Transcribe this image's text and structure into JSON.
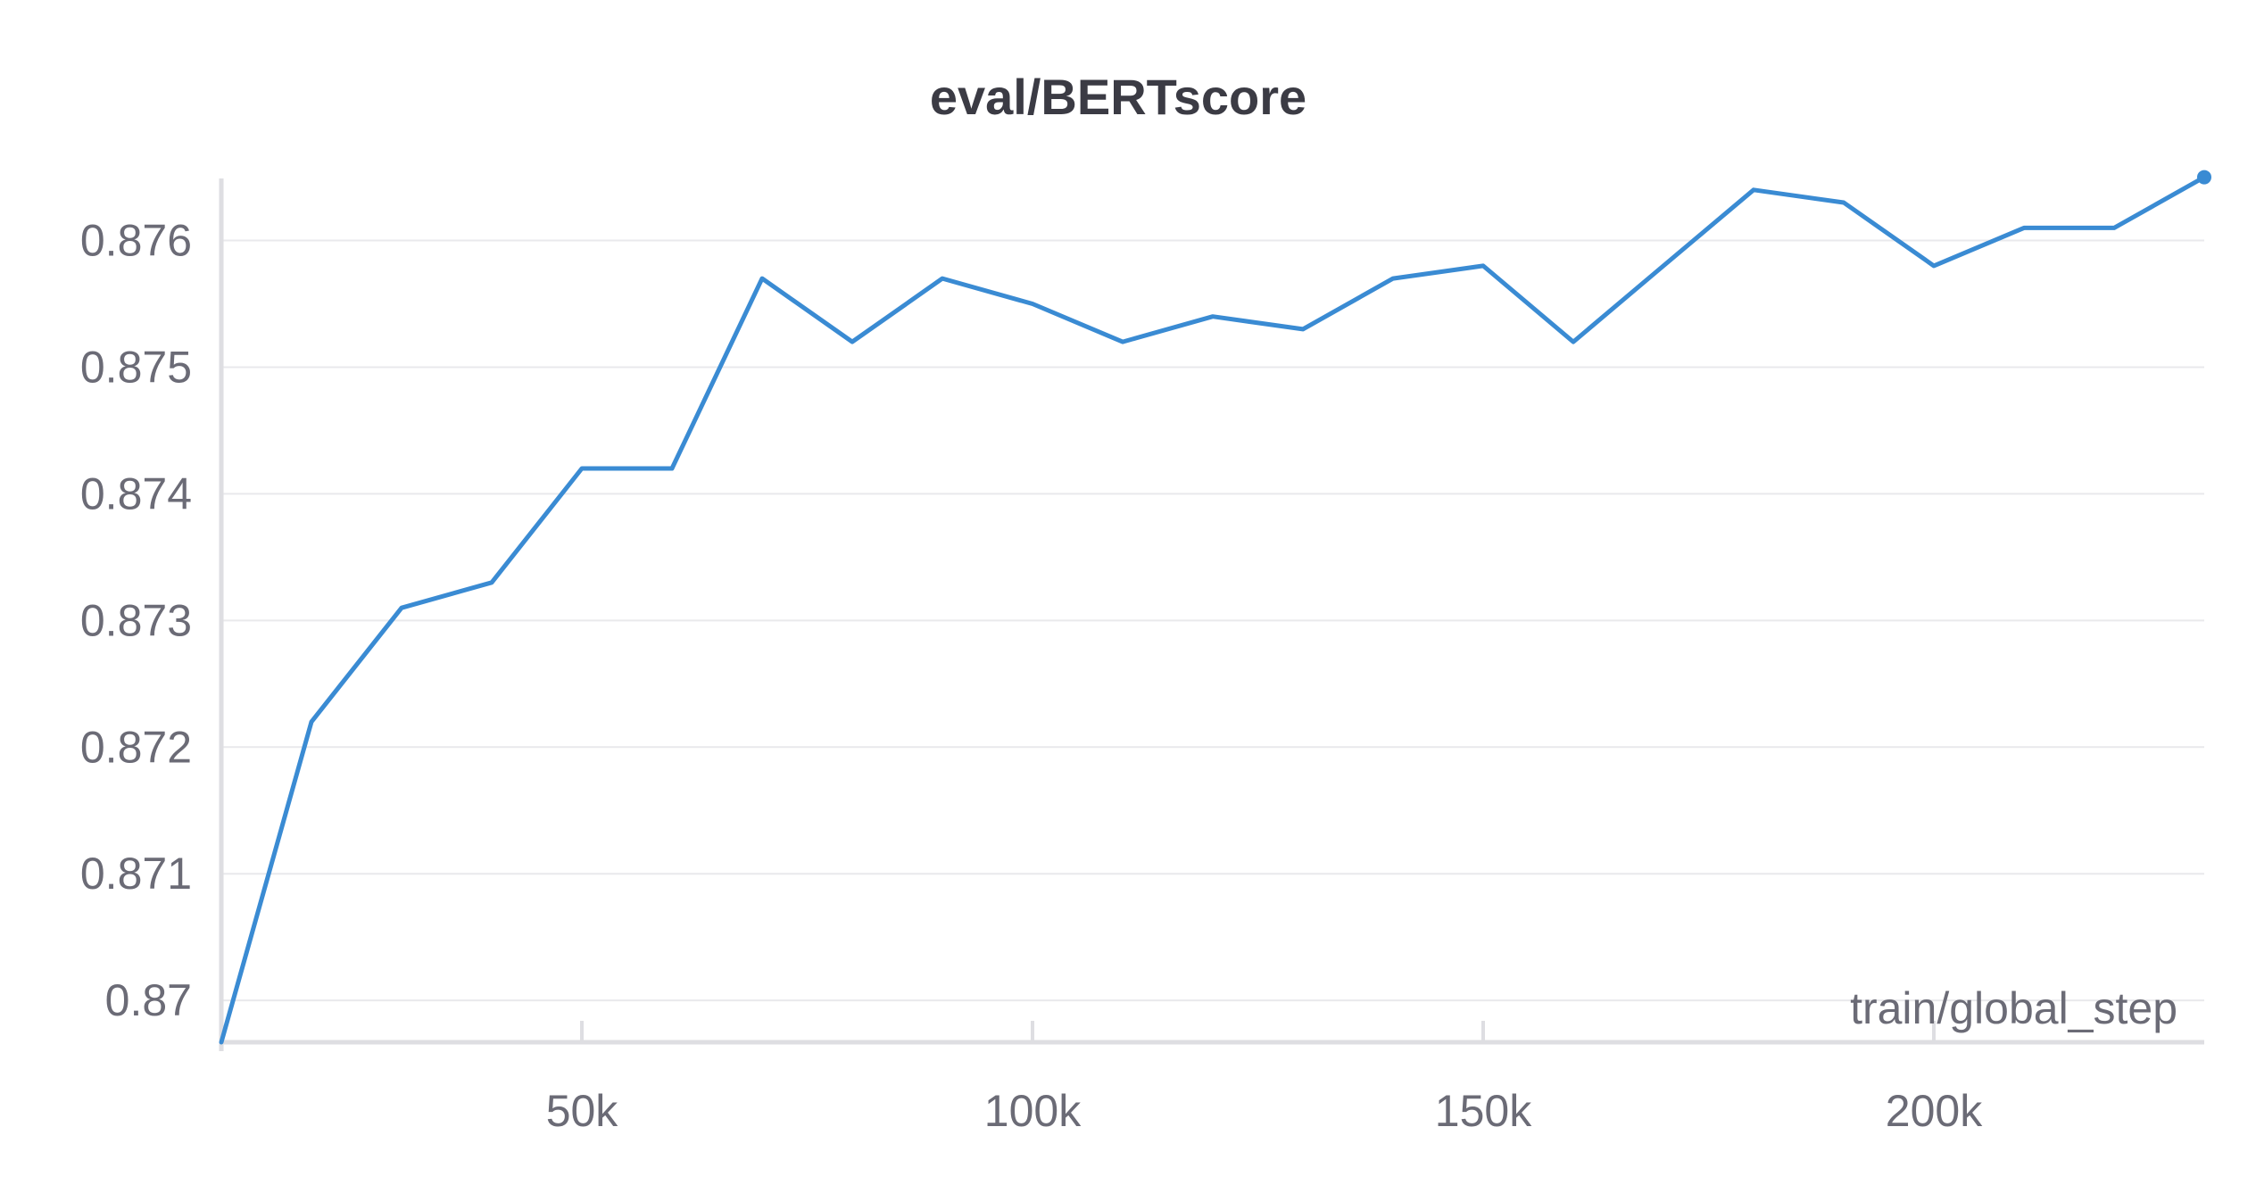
{
  "chart_data": {
    "type": "line",
    "title": "eval/BERTscore",
    "xlabel": "train/global_step",
    "ylabel": "",
    "xlim": [
      10000,
      230000
    ],
    "ylim": [
      0.86967,
      0.87649
    ],
    "yticks": [
      0.87,
      0.871,
      0.872,
      0.873,
      0.874,
      0.875,
      0.876
    ],
    "ytick_labels": [
      "0.87",
      "0.871",
      "0.872",
      "0.873",
      "0.874",
      "0.875",
      "0.876"
    ],
    "xticks": [
      50000,
      100000,
      150000,
      200000
    ],
    "xtick_labels": [
      "50k",
      "100k",
      "150k",
      "200k"
    ],
    "grid": true,
    "series": [
      {
        "color": "#3a8bd3",
        "x": [
          10000,
          20000,
          30000,
          40000,
          50000,
          60000,
          70000,
          80000,
          90000,
          100000,
          110000,
          120000,
          130000,
          140000,
          150000,
          160000,
          170000,
          180000,
          190000,
          200000,
          210000,
          220000,
          230000
        ],
        "y": [
          0.86967,
          0.8722,
          0.8731,
          0.8733,
          0.8742,
          0.8742,
          0.8757,
          0.8752,
          0.8757,
          0.8755,
          0.8752,
          0.8754,
          0.8753,
          0.8757,
          0.8758,
          0.8752,
          0.8758,
          0.8764,
          0.8763,
          0.8758,
          0.8761,
          0.8761,
          0.8765
        ]
      }
    ]
  }
}
